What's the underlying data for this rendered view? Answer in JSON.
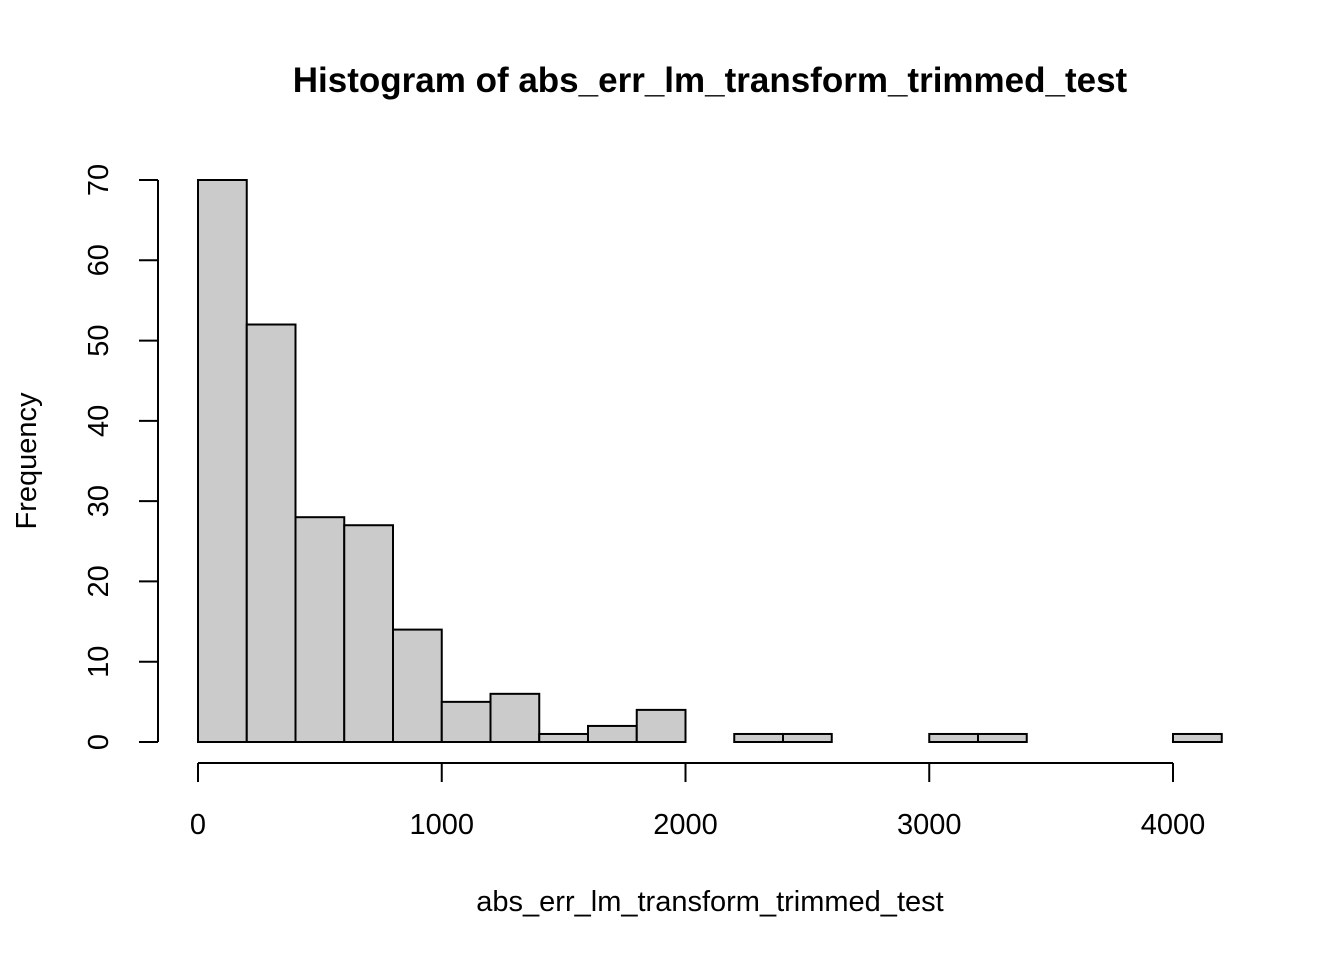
{
  "chart_data": {
    "type": "bar",
    "title": "Histogram of abs_err_lm_transform_trimmed_test",
    "xlabel": "abs_err_lm_transform_trimmed_test",
    "ylabel": "Frequency",
    "bin_edges": [
      0,
      200,
      400,
      600,
      800,
      1000,
      1200,
      1400,
      1600,
      1800,
      2000,
      2200,
      2400,
      2600,
      2800,
      3000,
      3200,
      3400,
      3600,
      3800,
      4000,
      4200
    ],
    "values": [
      70,
      52,
      28,
      27,
      14,
      5,
      6,
      1,
      2,
      4,
      0,
      1,
      1,
      0,
      0,
      1,
      1,
      0,
      0,
      0,
      1
    ],
    "xlim": [
      0,
      4200
    ],
    "ylim": [
      0,
      70
    ],
    "x_ticks": [
      0,
      1000,
      2000,
      3000,
      4000
    ],
    "x_tick_labels": [
      "0",
      "1000",
      "2000",
      "3000",
      "4000"
    ],
    "y_ticks": [
      0,
      10,
      20,
      30,
      40,
      50,
      60,
      70
    ],
    "y_tick_labels": [
      "0",
      "10",
      "20",
      "30",
      "40",
      "50",
      "60",
      "70"
    ],
    "bar_fill": "#cbcbcb",
    "bar_stroke": "#000000",
    "grid": false
  }
}
